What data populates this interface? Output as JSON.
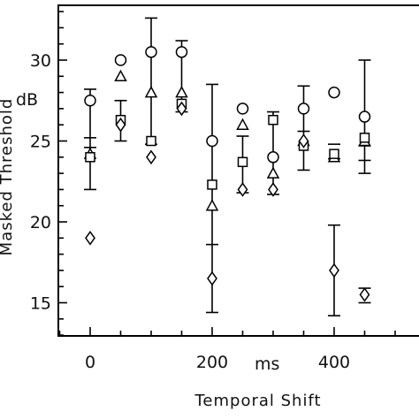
{
  "chart_data": {
    "type": "scatter",
    "xlabel": "Temporal Shift",
    "xunit": "ms",
    "ylabel": "Masked Threshold",
    "yunit": "dB",
    "xlim": [
      -25,
      525
    ],
    "ylim": [
      12.5,
      34
    ],
    "xticks": [
      0,
      200,
      400
    ],
    "yticks": [
      15,
      20,
      25,
      30
    ],
    "x_minor_step": 50,
    "y_minor_step": 1,
    "grid": false,
    "series": [
      {
        "marker": "circle",
        "points": [
          {
            "x": 0,
            "y": 27.5
          },
          {
            "x": 50,
            "y": 30
          },
          {
            "x": 100,
            "y": 30.5
          },
          {
            "x": 150,
            "y": 30.5
          },
          {
            "x": 200,
            "y": 25
          },
          {
            "x": 250,
            "y": 27
          },
          {
            "x": 300,
            "y": 24
          },
          {
            "x": 350,
            "y": 27
          },
          {
            "x": 400,
            "y": 28
          },
          {
            "x": 450,
            "y": 26.5
          }
        ]
      },
      {
        "marker": "triangle",
        "points": [
          {
            "x": 0,
            "y": 24.2
          },
          {
            "x": 50,
            "y": 29
          },
          {
            "x": 100,
            "y": 28
          },
          {
            "x": 150,
            "y": 28
          },
          {
            "x": 200,
            "y": 21
          },
          {
            "x": 250,
            "y": 26
          },
          {
            "x": 300,
            "y": 23
          },
          {
            "x": 350,
            "y": 25
          },
          {
            "x": 400,
            "y": 24
          },
          {
            "x": 450,
            "y": 25
          }
        ]
      },
      {
        "marker": "square",
        "points": [
          {
            "x": 0,
            "y": 24
          },
          {
            "x": 50,
            "y": 26.3
          },
          {
            "x": 100,
            "y": 25
          },
          {
            "x": 150,
            "y": 27.3
          },
          {
            "x": 200,
            "y": 22.3
          },
          {
            "x": 250,
            "y": 23.7
          },
          {
            "x": 300,
            "y": 26.3
          },
          {
            "x": 350,
            "y": 24.7
          },
          {
            "x": 400,
            "y": 24.2
          },
          {
            "x": 450,
            "y": 25.2
          }
        ]
      },
      {
        "marker": "diamond",
        "points": [
          {
            "x": 0,
            "y": 19
          },
          {
            "x": 50,
            "y": 26
          },
          {
            "x": 100,
            "y": 24
          },
          {
            "x": 150,
            "y": 27
          },
          {
            "x": 200,
            "y": 16.5
          },
          {
            "x": 250,
            "y": 22
          },
          {
            "x": 300,
            "y": 22
          },
          {
            "x": 350,
            "y": 25
          },
          {
            "x": 400,
            "y": 17
          },
          {
            "x": 450,
            "y": 15.5
          }
        ]
      }
    ],
    "error_bars": [
      {
        "x": 0,
        "low": 22,
        "high": 28.2,
        "mid_ticks": [
          25.2,
          24.6
        ]
      },
      {
        "x": 50,
        "low": 25,
        "high": 27.5,
        "mid_ticks": []
      },
      {
        "x": 100,
        "low": 24.8,
        "high": 32.6,
        "mid_ticks": []
      },
      {
        "x": 150,
        "low": 26.8,
        "high": 31.2,
        "mid_ticks": []
      },
      {
        "x": 200,
        "low": 14.4,
        "high": 28.5,
        "mid_ticks": [
          18.6
        ]
      },
      {
        "x": 250,
        "low": 21.8,
        "high": 25.3,
        "mid_ticks": []
      },
      {
        "x": 300,
        "low": 21.7,
        "high": 26.8,
        "mid_ticks": []
      },
      {
        "x": 350,
        "low": 23.2,
        "high": 28.4,
        "mid_ticks": [
          25.6
        ]
      },
      {
        "x": 400,
        "low": 14.2,
        "high": 19.8,
        "mid_ticks": [
          24.8,
          23.9
        ]
      },
      {
        "x": 450,
        "low": 23,
        "high": 30,
        "mid_ticks": [
          24.7,
          23.8,
          15.9,
          15
        ]
      }
    ]
  }
}
